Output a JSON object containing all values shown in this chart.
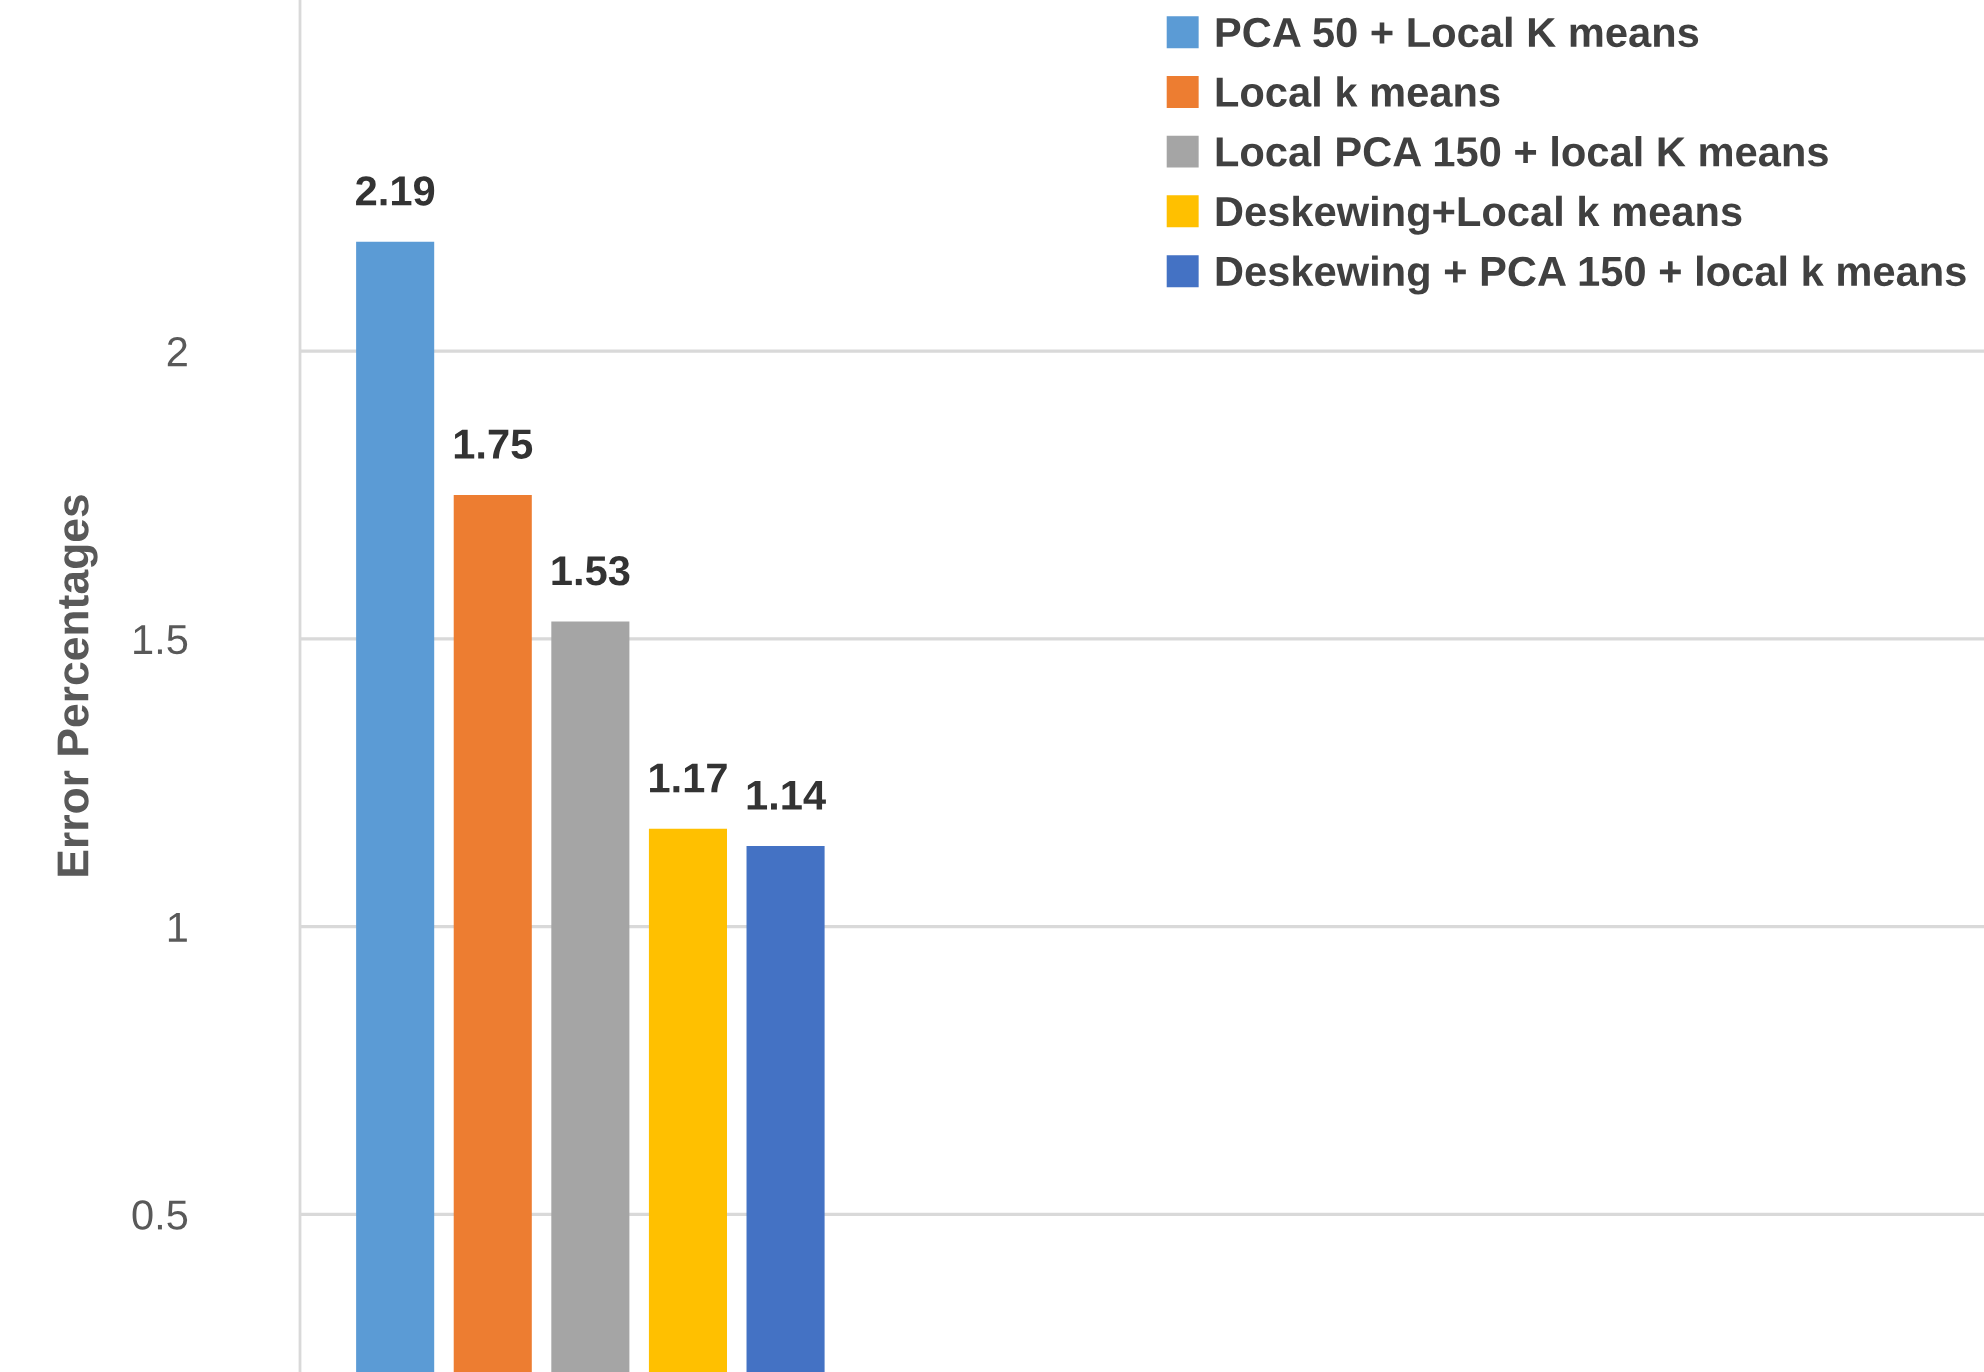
{
  "chart_data": {
    "type": "bar",
    "ylabel": "Error Percentages",
    "categories": [
      null
    ],
    "series": [
      {
        "name": "PCA 50 + Local K means",
        "color": "#5b9bd5",
        "values": [
          2.19
        ]
      },
      {
        "name": "Local k means",
        "color": "#ed7d31",
        "values": [
          1.75
        ]
      },
      {
        "name": "Local PCA 150 + local K means",
        "color": "#a5a5a5",
        "values": [
          1.53
        ]
      },
      {
        "name": "Deskewing+Local k means",
        "color": "#ffc000",
        "values": [
          1.17
        ]
      },
      {
        "name": "Deskewing + PCA 150 + local k means",
        "color": "#4472c4",
        "values": [
          1.14
        ]
      }
    ],
    "ylim": [
      0.226,
      2.61
    ],
    "yticks": [
      0.5,
      1,
      1.5,
      2
    ],
    "grid": "y",
    "legend": "top right",
    "data_labels": true,
    "tick_labels": "y"
  }
}
